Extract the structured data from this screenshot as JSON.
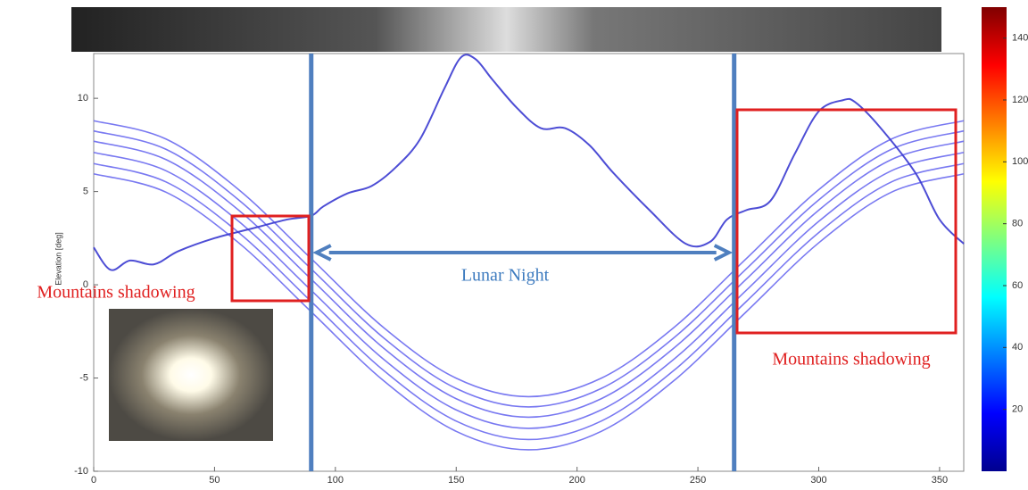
{
  "chart_data": {
    "type": "line",
    "y_label": "Elevation [deg]",
    "xlim": [
      0,
      360
    ],
    "xticks": [
      0,
      50,
      100,
      150,
      200,
      250,
      300,
      350
    ],
    "ylim": [
      -10,
      12.4
    ],
    "yticks": [
      -10,
      -5,
      0,
      5,
      10
    ],
    "clim": [
      0,
      150
    ],
    "cticks": [
      20,
      40,
      60,
      80,
      100,
      120,
      140
    ],
    "series": [
      {
        "color": "#6a6af0",
        "x": [
          0,
          30,
          60,
          90,
          120,
          150,
          180,
          210,
          240,
          270,
          300,
          330,
          360
        ],
        "values": [
          8.8,
          7.81,
          5.1,
          1.4,
          -2.3,
          -5.01,
          -6,
          -5.01,
          -2.3,
          1.4,
          5.1,
          7.81,
          8.8
        ]
      },
      {
        "color": "#6a6af0",
        "x": [
          0,
          30,
          60,
          90,
          120,
          150,
          180,
          210,
          240,
          270,
          300,
          330,
          360
        ],
        "values": [
          8.25,
          7.26,
          4.55,
          0.85,
          -2.85,
          -5.56,
          -6.55,
          -5.56,
          -2.85,
          0.85,
          4.55,
          7.26,
          8.25
        ]
      },
      {
        "color": "#6a6af0",
        "x": [
          0,
          30,
          60,
          90,
          120,
          150,
          180,
          210,
          240,
          270,
          300,
          330,
          360
        ],
        "values": [
          7.7,
          6.71,
          4,
          0.3,
          -3.4,
          -6.11,
          -7.1,
          -6.11,
          -3.4,
          0.3,
          4,
          6.71,
          7.7
        ]
      },
      {
        "color": "#6a6af0",
        "x": [
          0,
          30,
          60,
          90,
          120,
          150,
          180,
          210,
          240,
          270,
          300,
          330,
          360
        ],
        "values": [
          7.1,
          6.11,
          3.4,
          -0.3,
          -4,
          -6.71,
          -7.7,
          -6.71,
          -4,
          -0.3,
          3.4,
          6.11,
          7.1
        ]
      },
      {
        "color": "#6a6af0",
        "x": [
          0,
          30,
          60,
          90,
          120,
          150,
          180,
          210,
          240,
          270,
          300,
          330,
          360
        ],
        "values": [
          6.5,
          5.51,
          2.8,
          -0.9,
          -4.6,
          -7.31,
          -8.3,
          -7.31,
          -4.6,
          -0.9,
          2.8,
          5.51,
          6.5
        ]
      },
      {
        "color": "#6a6af0",
        "x": [
          0,
          30,
          60,
          90,
          120,
          150,
          180,
          210,
          240,
          270,
          300,
          330,
          360
        ],
        "values": [
          5.95,
          4.96,
          2.25,
          -1.45,
          -5.15,
          -7.86,
          -8.85,
          -7.86,
          -5.15,
          -1.45,
          2.25,
          4.96,
          5.95
        ]
      },
      {
        "color": "#3a3ad0",
        "x": [
          0,
          7,
          15,
          25,
          35,
          50,
          65,
          80,
          90,
          95,
          105,
          115,
          125,
          135,
          145,
          152,
          158,
          165,
          175,
          185,
          195,
          205,
          215,
          230,
          245,
          255,
          262,
          270,
          280,
          290,
          300,
          310,
          315,
          325,
          340,
          350,
          360
        ],
        "values": [
          2,
          0.8,
          1.3,
          1.1,
          1.8,
          2.5,
          3,
          3.5,
          3.7,
          4.2,
          4.9,
          5.3,
          6.3,
          7.8,
          10.5,
          12.2,
          12.1,
          11,
          9.5,
          8.4,
          8.4,
          7.5,
          6,
          4,
          2.2,
          2.3,
          3.5,
          4,
          4.5,
          7,
          9.3,
          9.9,
          9.8,
          8.5,
          6,
          3.5,
          2.2
        ]
      }
    ],
    "night_bounds": [
      90,
      265
    ],
    "annotations": {
      "night": "Lunar Night",
      "left": "Mountains shadowing",
      "right": "Mountains shadowing"
    }
  }
}
